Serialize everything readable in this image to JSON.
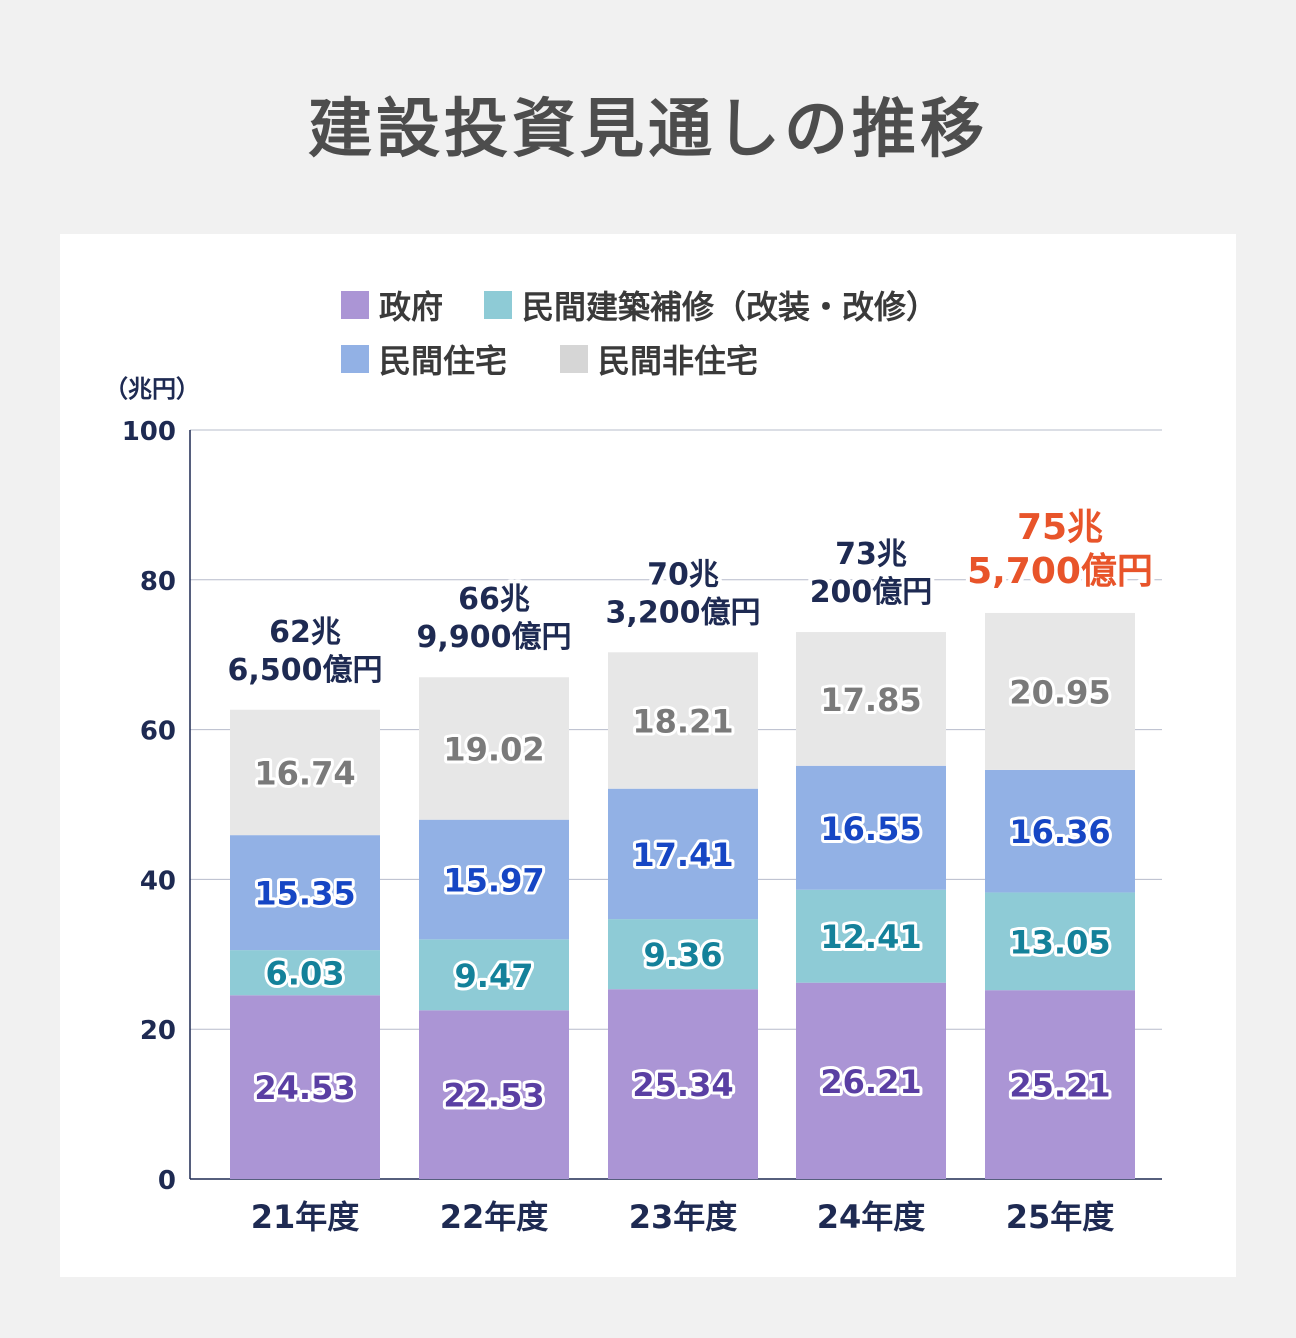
{
  "title": "建設投資見通しの推移",
  "legend": [
    {
      "label": "政府",
      "color": "#ab95d5"
    },
    {
      "label": "民間建築補修（改装・改修）",
      "color": "#8ecbd6"
    },
    {
      "label": "民間住宅",
      "color": "#92b1e5"
    },
    {
      "label": "民間非住宅",
      "color": "#d6d6d6"
    }
  ],
  "chart_data": {
    "type": "bar",
    "stacked": true,
    "ylabel": "（兆円）",
    "ylim": [
      0,
      100
    ],
    "yticks": [
      "0",
      "20",
      "40",
      "60",
      "80",
      "100"
    ],
    "grid": true,
    "legend_position": "top",
    "categories": [
      "21年度",
      "22年度",
      "23年度",
      "24年度",
      "25年度"
    ],
    "series": [
      {
        "name": "政府",
        "values": [
          24.53,
          22.53,
          25.34,
          26.21,
          25.21
        ],
        "color": "#ab95d5",
        "label_color": "#5a3fa3",
        "label_text": [
          "24.53",
          "22.53",
          "25.34",
          "26.21",
          "25.21"
        ]
      },
      {
        "name": "民間建築補修（改装・改修）",
        "values": [
          6.03,
          9.47,
          9.36,
          12.41,
          13.05
        ],
        "color": "#8ecbd6",
        "label_color": "#14819a",
        "label_text": [
          "6.03",
          "9.47",
          "9.36",
          "12.41",
          "13.05"
        ]
      },
      {
        "name": "民間住宅",
        "values": [
          15.35,
          15.97,
          17.41,
          16.55,
          16.36
        ],
        "color": "#92b1e5",
        "label_color": "#1646c4",
        "label_text": [
          "15.35",
          "15.97",
          "17.41",
          "16.55",
          "16.36"
        ]
      },
      {
        "name": "民間非住宅",
        "values": [
          16.74,
          19.02,
          18.21,
          17.85,
          20.95
        ],
        "color": "#e7e7e7",
        "label_color": "#7a7a7a",
        "label_text": [
          "16.74",
          "19.02",
          "18.21",
          "17.85",
          "20.95"
        ]
      }
    ],
    "totals": [
      {
        "line1": "62兆",
        "line2": "6,500億円",
        "color": "#1e2a52"
      },
      {
        "line1": "66兆",
        "line2": "9,900億円",
        "color": "#1e2a52"
      },
      {
        "line1": "70兆",
        "line2": "3,200億円",
        "color": "#1e2a52"
      },
      {
        "line1": "73兆",
        "line2": "200億円",
        "color": "#1e2a52"
      },
      {
        "line1": "75兆",
        "line2": "5,700億円",
        "color": "#e8542a"
      }
    ]
  }
}
